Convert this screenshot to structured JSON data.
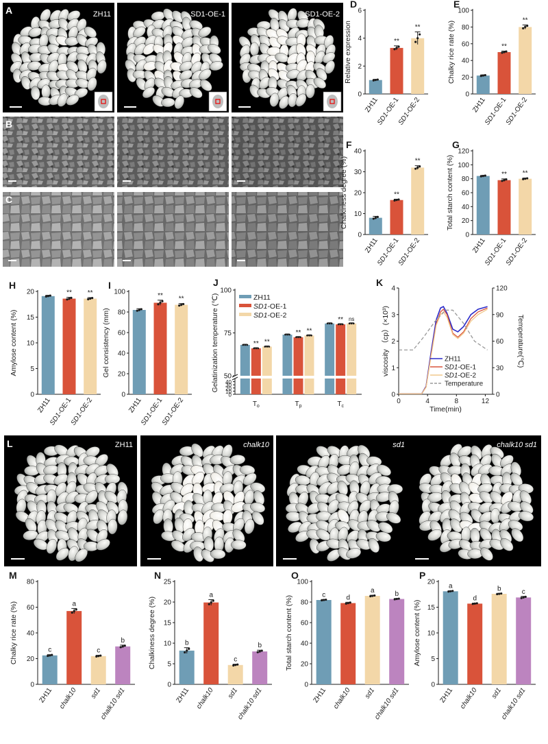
{
  "colors": {
    "blue": "#6f9db5",
    "red": "#d9533a",
    "tan": "#f3d7a8",
    "purple": "#bc84bf",
    "dark": "#1a1a1a"
  },
  "panels": {
    "A": {
      "letter": "A",
      "labels": [
        "ZH11",
        "SD1-OE-1",
        "SD1-OE-2"
      ]
    },
    "B": {
      "letter": "B"
    },
    "C": {
      "letter": "C"
    },
    "L": {
      "letter": "L",
      "labels": [
        "ZH11",
        "chalk10",
        "sd1",
        "chalk10 sd1"
      ]
    }
  },
  "chart_data": [
    {
      "id": "D",
      "letter": "D",
      "type": "bar",
      "ylabel": "Relative expression",
      "categories": [
        "ZH11",
        "SD1-OE-1",
        "SD1-OE-2"
      ],
      "values": [
        1.0,
        3.3,
        4.0
      ],
      "errors": [
        0.05,
        0.15,
        0.45
      ],
      "ylim": [
        0,
        6
      ],
      "yticks": [
        "0",
        "2",
        "4",
        "6"
      ],
      "sig": [
        "",
        "**",
        "**"
      ]
    },
    {
      "id": "E",
      "letter": "E",
      "type": "bar",
      "ylabel": "Chalky rice rate (%)",
      "categories": [
        "ZH11",
        "SD1-OE-1",
        "SD1-OE-2"
      ],
      "values": [
        22,
        50,
        80
      ],
      "errors": [
        0.8,
        1.2,
        2.5
      ],
      "ylim": [
        0,
        100
      ],
      "yticks": [
        "0",
        "20",
        "40",
        "60",
        "80",
        "100"
      ],
      "sig": [
        "",
        "**",
        "**"
      ]
    },
    {
      "id": "F",
      "letter": "F",
      "type": "bar",
      "ylabel": "Chalkiness degree (%)",
      "categories": [
        "ZH11",
        "SD1-OE-1",
        "SD1-OE-2"
      ],
      "values": [
        8,
        16.5,
        32
      ],
      "errors": [
        0.7,
        0.4,
        0.9
      ],
      "ylim": [
        0,
        40
      ],
      "yticks": [
        "0",
        "10",
        "20",
        "30",
        "40"
      ],
      "sig": [
        "",
        "**",
        "**"
      ]
    },
    {
      "id": "G",
      "letter": "G",
      "type": "bar",
      "ylabel": "Total starch content (%)",
      "categories": [
        "ZH11",
        "SD1-OE-1",
        "SD1-OE-2"
      ],
      "values": [
        84,
        78,
        80
      ],
      "errors": [
        0.8,
        1.8,
        1.0
      ],
      "ylim": [
        0,
        120
      ],
      "yticks": [
        "0",
        "20",
        "40",
        "60",
        "80",
        "100",
        "120"
      ],
      "sig": [
        "",
        "**",
        "**"
      ]
    },
    {
      "id": "H",
      "letter": "H",
      "type": "bar",
      "ylabel": "Amylose content (%)",
      "categories": [
        "ZH11",
        "SD1-OE-1",
        "SD1-OE-2"
      ],
      "values": [
        19.1,
        18.6,
        18.6
      ],
      "errors": [
        0.15,
        0.25,
        0.2
      ],
      "ylim": [
        0,
        20
      ],
      "yticks": [
        "0",
        "5",
        "10",
        "15",
        "20"
      ],
      "sig": [
        "",
        "**",
        "**"
      ]
    },
    {
      "id": "I",
      "letter": "I",
      "type": "bar",
      "ylabel": "Gel consistency (mm)",
      "categories": [
        "ZH11",
        "SD1-OE-1",
        "SD1-OE-2"
      ],
      "values": [
        82,
        89,
        87
      ],
      "errors": [
        1.2,
        2.5,
        1.2
      ],
      "ylim": [
        0,
        100
      ],
      "yticks": [
        "0",
        "20",
        "40",
        "60",
        "80",
        "100"
      ],
      "sig": [
        "",
        "**",
        "**"
      ]
    },
    {
      "id": "M",
      "letter": "M",
      "type": "bar",
      "ylabel": "Chalky rice rate (%)",
      "categories": [
        "ZH11",
        "chalk10",
        "sd1",
        "chalk10 sd1"
      ],
      "values": [
        22.5,
        57,
        22,
        29.5
      ],
      "errors": [
        0.6,
        2.0,
        0.6,
        1.0
      ],
      "ylim": [
        0,
        80
      ],
      "yticks": [
        "0",
        "20",
        "40",
        "60",
        "80"
      ],
      "sig": [
        "c",
        "a",
        "c",
        "b"
      ]
    },
    {
      "id": "N",
      "letter": "N",
      "type": "bar",
      "ylabel": "Chalkiness degree (%)",
      "categories": [
        "ZH11",
        "chalk10",
        "sd1",
        "chalk10 sd1"
      ],
      "values": [
        8.2,
        19.9,
        4.7,
        8.0
      ],
      "errors": [
        0.7,
        0.7,
        0.2,
        0.3
      ],
      "ylim": [
        0,
        25
      ],
      "yticks": [
        "0",
        "5",
        "10",
        "15",
        "20",
        "25"
      ],
      "sig": [
        "b",
        "a",
        "c",
        "b"
      ]
    },
    {
      "id": "O",
      "letter": "O",
      "type": "bar",
      "ylabel": "Total starch content (%)",
      "categories": [
        "ZH11",
        "chalk10",
        "sd1",
        "chalk10 sd1"
      ],
      "values": [
        82,
        79,
        86,
        83
      ],
      "errors": [
        0.5,
        0.8,
        0.6,
        0.5
      ],
      "ylim": [
        0,
        100
      ],
      "yticks": [
        "0",
        "20",
        "40",
        "60",
        "80",
        "100"
      ],
      "sig": [
        "c",
        "d",
        "a",
        "b"
      ]
    },
    {
      "id": "P",
      "letter": "P",
      "type": "bar",
      "ylabel": "Amylose content (%)",
      "categories": [
        "ZH11",
        "chalk10",
        "sd1",
        "chalk10 sd1"
      ],
      "values": [
        18.1,
        15.7,
        17.6,
        16.9
      ],
      "errors": [
        0.1,
        0.1,
        0.1,
        0.2
      ],
      "ylim": [
        0,
        20
      ],
      "yticks": [
        "0",
        "5",
        "10",
        "15",
        "20"
      ],
      "sig": [
        "a",
        "d",
        "b",
        "c"
      ]
    },
    {
      "id": "J",
      "letter": "J",
      "type": "bar",
      "ylabel": "Gelatinization temperature (℃)",
      "groups": [
        "To",
        "Tp",
        "Tc"
      ],
      "legend": [
        "ZH11",
        "SD1-OE-1",
        "SD1-OE-2"
      ],
      "series": [
        {
          "name": "ZH11",
          "values": [
            68,
            74,
            80.5
          ]
        },
        {
          "name": "SD1-OE-1",
          "values": [
            66,
            72.5,
            80
          ]
        },
        {
          "name": "SD1-OE-2",
          "values": [
            67,
            73.5,
            80.5
          ]
        }
      ],
      "sig": [
        [
          "",
          "**",
          "**"
        ],
        [
          "",
          "**",
          "**"
        ],
        [
          "",
          "**",
          "ns"
        ]
      ],
      "yticks": [
        "100",
        "75",
        "50",
        "40",
        "30",
        "20",
        "10",
        "0"
      ],
      "broken_axis": [
        [
          0,
          50
        ],
        [
          50,
          100
        ]
      ]
    },
    {
      "id": "K",
      "letter": "K",
      "type": "line",
      "xlabel": "Time(min)",
      "ylabel": "viscosity （cp）(×10³)",
      "ylabel2": "Temperature(℃)",
      "xticks": [
        "0",
        "4",
        "8",
        "12"
      ],
      "yticks": [
        "0",
        "1",
        "2",
        "3",
        "4"
      ],
      "yticks2": [
        "0",
        "30",
        "60",
        "90",
        "120"
      ],
      "xlim": [
        0,
        13
      ],
      "ylim": [
        0,
        4
      ],
      "ylim2": [
        0,
        120
      ],
      "series": [
        {
          "name": "ZH11",
          "x": [
            0,
            3.2,
            3.8,
            4.5,
            5.2,
            5.8,
            6.2,
            6.7,
            7.5,
            8.2,
            9,
            10,
            11,
            12.3
          ],
          "y": [
            0.02,
            0.02,
            0.3,
            1.6,
            2.8,
            3.25,
            3.3,
            3.05,
            2.45,
            2.35,
            2.55,
            3.0,
            3.2,
            3.3
          ]
        },
        {
          "name": "SD1-OE-1",
          "x": [
            0,
            3.2,
            3.8,
            4.5,
            5.2,
            5.8,
            6.2,
            6.7,
            7.5,
            8.2,
            9,
            10,
            11,
            12.3
          ],
          "y": [
            0.02,
            0.02,
            0.28,
            1.5,
            2.65,
            3.1,
            3.2,
            3.0,
            2.3,
            2.15,
            2.35,
            2.85,
            3.1,
            3.25
          ]
        },
        {
          "name": "SD1-OE-2",
          "x": [
            0,
            3.2,
            3.8,
            4.5,
            5.2,
            5.8,
            6.2,
            6.7,
            7.5,
            8.2,
            9,
            10,
            11,
            12.3
          ],
          "y": [
            0.02,
            0.02,
            0.26,
            1.45,
            2.6,
            3.0,
            3.1,
            2.9,
            2.25,
            2.1,
            2.3,
            2.75,
            3.0,
            3.2
          ]
        },
        {
          "name": "Temperature",
          "x": [
            0,
            1,
            2,
            3.5,
            5,
            6.5,
            7.5,
            9,
            10.5,
            12.3
          ],
          "y": [
            50,
            50,
            50,
            65,
            82,
            95,
            95,
            80,
            60,
            50
          ]
        }
      ]
    }
  ]
}
